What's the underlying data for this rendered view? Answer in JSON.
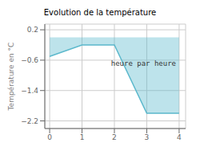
{
  "chart_data": {
    "type": "area",
    "title": "Evolution de la température",
    "ylabel": "Température en °C",
    "annotations": [
      {
        "text": "heure par heure",
        "x": 2.9,
        "y": -0.55
      }
    ],
    "x": [
      0,
      1,
      2,
      3,
      4
    ],
    "values": [
      -0.5,
      -0.2,
      -0.2,
      -2.0,
      -2.0
    ],
    "color": "#5bb8cc",
    "xlim": [
      -0.15,
      4.2
    ],
    "ylim": [
      -2.4,
      0.35
    ],
    "xticks": [
      0,
      1,
      2,
      3,
      4
    ],
    "yticks": [
      0.2,
      {
        "value": -0.6,
        "label": "−0.6"
      },
      {
        "value": -1.4,
        "label": "−1.4"
      },
      {
        "value": -2.2,
        "label": "−2.2"
      }
    ],
    "grid": true
  }
}
